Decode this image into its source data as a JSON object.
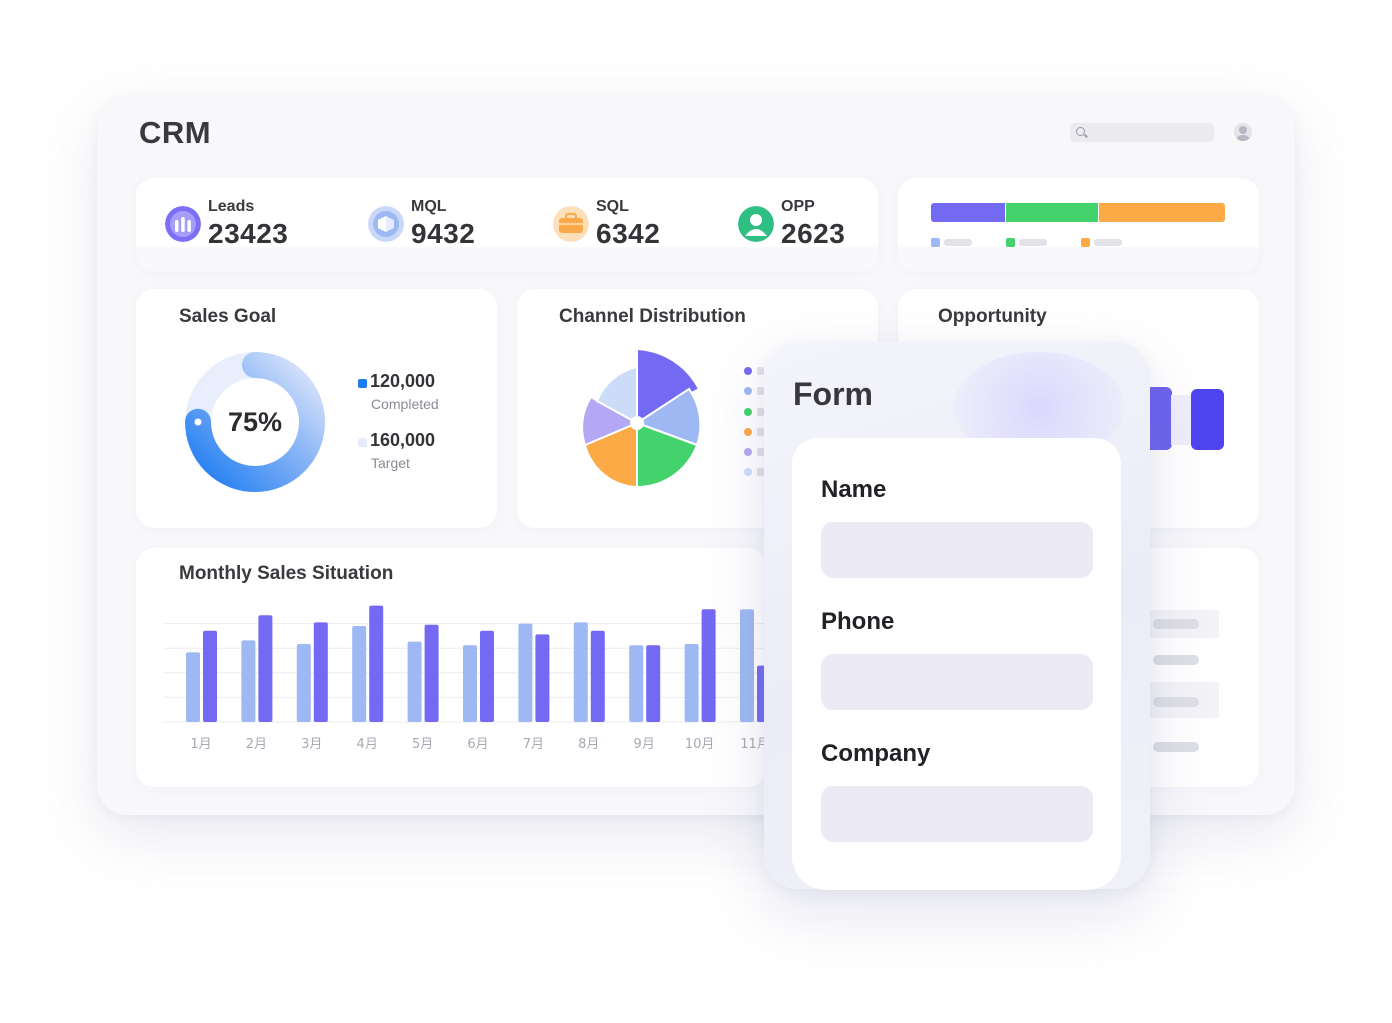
{
  "app": {
    "title": "CRM"
  },
  "search": {
    "placeholder": ""
  },
  "kpis": [
    {
      "label": "Leads",
      "value": "23423",
      "icon": "leads-icon",
      "color": "#7b6ff5"
    },
    {
      "label": "MQL",
      "value": "9432",
      "icon": "mql-icon",
      "color": "#9db8f2"
    },
    {
      "label": "SQL",
      "value": "6342",
      "icon": "sql-icon",
      "color": "#fba94a"
    },
    {
      "label": "OPP",
      "value": "2623",
      "icon": "opp-icon",
      "color": "#3dcb8a"
    }
  ],
  "stacked_bar": {
    "segments": [
      {
        "fraction": 0.25,
        "color": "#7469f2"
      },
      {
        "fraction": 0.32,
        "color": "#43d26b"
      },
      {
        "fraction": 0.43,
        "color": "#fbaa46"
      }
    ],
    "legend_colors": [
      "#9db8f2",
      "#43d26b",
      "#fbaa46"
    ]
  },
  "sales_goal": {
    "title": "Sales Goal",
    "percent_label": "75%",
    "progress": 0.75,
    "completed_value": "120,000",
    "completed_label": "Completed",
    "target_value": "160,000",
    "target_label": "Target",
    "colors": {
      "completed": "#1e7cf2",
      "target": "#e6ecfb"
    }
  },
  "channel_distribution": {
    "title": "Channel Distribution",
    "legend_colors": [
      "#7469f2",
      "#9db8f2",
      "#43d26b",
      "#fbaa46",
      "#b4a8f5",
      "#cbdcf8"
    ]
  },
  "opportunity": {
    "title": "Opportunity"
  },
  "monthly_sales": {
    "title": "Monthly Sales Situation"
  },
  "chart_data": {
    "type": "bar",
    "categories": [
      "1月",
      "2月",
      "3月",
      "4月",
      "5月",
      "6月",
      "7月",
      "8月",
      "9月",
      "10月",
      "11月"
    ],
    "series": [
      {
        "values": [
          58,
          68,
          65,
          80,
          67,
          64,
          82,
          83,
          64,
          65,
          94
        ],
        "color": "#9db8f2"
      },
      {
        "values": [
          76,
          89,
          83,
          97,
          81,
          76,
          73,
          76,
          64,
          94,
          47
        ],
        "color": "#7469f2"
      }
    ],
    "ylim": [
      0,
      100
    ],
    "grid": true
  },
  "form": {
    "title": "Form",
    "fields": [
      {
        "label": "Name",
        "value": ""
      },
      {
        "label": "Phone",
        "value": ""
      },
      {
        "label": "Company",
        "value": ""
      }
    ]
  }
}
